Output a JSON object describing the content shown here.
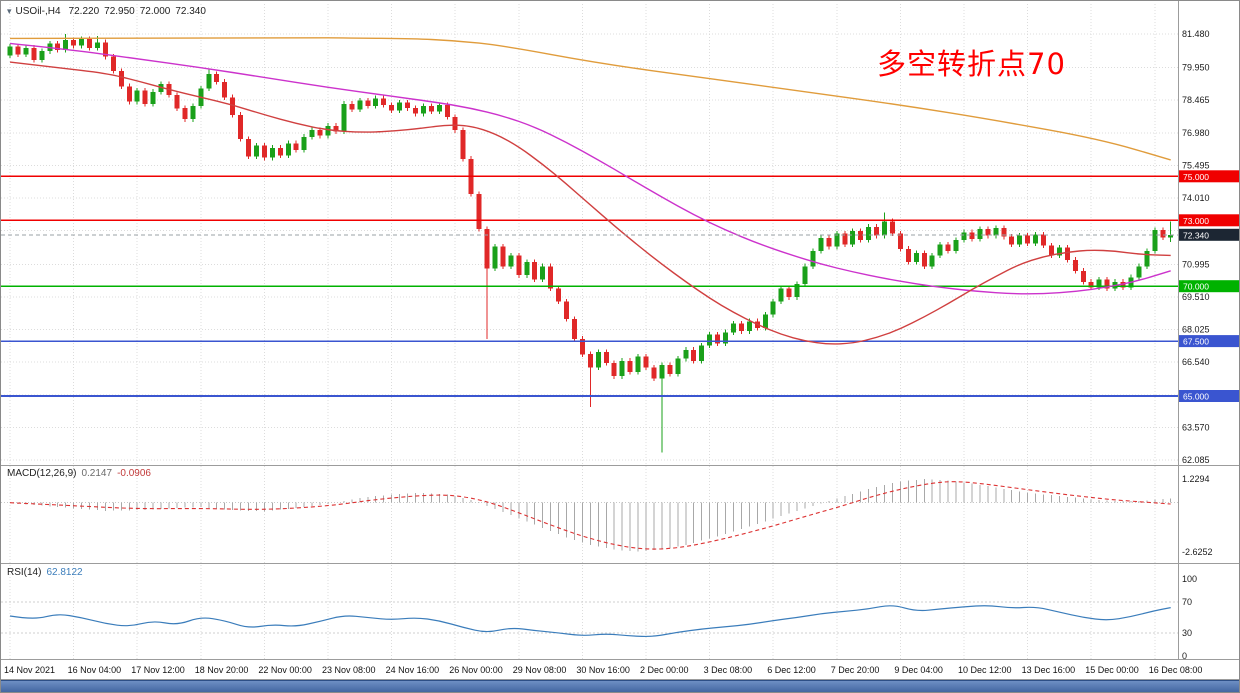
{
  "header": {
    "collapse_icon": "▾",
    "symbol": "USOil-,H4",
    "open": "72.220",
    "high": "72.950",
    "low": "72.000",
    "close": "72.340"
  },
  "annotation": {
    "text": "多空转折点70",
    "color": "#ff0000"
  },
  "colors": {
    "up": "#1aa01a",
    "down": "#e02828",
    "grid": "#dcdcdc",
    "border": "#9c9c9c",
    "current_line": "#9aa0a6",
    "current_badge": "#1c2633",
    "axis_text": "#1a1a1a",
    "macd_hist": "#a8a8a8",
    "macd_signal": "#dd3333",
    "rsi_line": "#3b7dbb"
  },
  "chart_data": [
    {
      "type": "candlestick",
      "title": "USOil-,H4",
      "timeframe": "H4",
      "ohlc_header": {
        "open": 72.22,
        "high": 72.95,
        "low": 72.0,
        "close": 72.34
      },
      "current_price": 72.34,
      "current_price_label": "72.340",
      "first_open": 80.5,
      "closes": [
        80.9,
        80.55,
        80.85,
        80.3,
        80.7,
        81.05,
        80.75,
        81.2,
        80.95,
        81.25,
        80.85,
        81.1,
        80.45,
        79.8,
        79.1,
        78.4,
        78.9,
        78.3,
        78.85,
        79.2,
        78.7,
        78.1,
        77.6,
        78.2,
        79.0,
        79.65,
        79.3,
        78.6,
        77.8,
        76.7,
        75.9,
        76.4,
        75.85,
        76.3,
        75.95,
        76.5,
        76.2,
        76.8,
        77.1,
        76.85,
        77.3,
        77.05,
        78.3,
        78.05,
        78.45,
        78.2,
        78.55,
        78.25,
        78.0,
        78.35,
        78.1,
        77.85,
        78.2,
        77.95,
        78.25,
        77.7,
        77.1,
        75.8,
        74.2,
        72.6,
        70.8,
        71.8,
        70.9,
        71.4,
        70.5,
        71.1,
        70.3,
        70.9,
        69.9,
        69.3,
        68.5,
        67.6,
        66.9,
        66.3,
        67.0,
        66.5,
        65.9,
        66.6,
        66.1,
        66.8,
        66.3,
        65.8,
        66.4,
        66.0,
        66.7,
        67.1,
        66.6,
        67.3,
        67.8,
        67.4,
        67.9,
        68.3,
        67.95,
        68.4,
        68.1,
        68.7,
        69.3,
        69.9,
        69.5,
        70.1,
        70.9,
        71.6,
        72.2,
        71.8,
        72.4,
        71.9,
        72.5,
        72.1,
        72.7,
        72.3,
        72.95,
        72.4,
        71.7,
        71.1,
        71.5,
        70.9,
        71.4,
        71.9,
        71.6,
        72.1,
        72.45,
        72.15,
        72.6,
        72.3,
        72.65,
        72.25,
        71.9,
        72.3,
        71.95,
        72.35,
        71.85,
        71.4,
        71.75,
        71.2,
        70.7,
        70.2,
        69.95,
        70.3,
        69.9,
        70.2,
        69.95,
        70.4,
        70.9,
        71.6,
        72.55,
        72.22,
        72.34
      ],
      "wick_high_overrides": {
        "7": 81.48,
        "11": 81.4,
        "25": 79.9,
        "110": 73.35,
        "146": 72.95
      },
      "wick_low_overrides": {
        "60": 67.6,
        "73": 64.5,
        "82": 62.43,
        "146": 72.0
      },
      "y_axis": {
        "price_top": 81.48,
        "price_bottom": 62.085,
        "gridlines": [
          {
            "price": 81.48,
            "label": "81.480"
          },
          {
            "price": 79.95,
            "label": "79.950"
          },
          {
            "price": 78.465,
            "label": "78.465"
          },
          {
            "price": 76.98,
            "label": "76.980"
          },
          {
            "price": 75.495,
            "label": "75.495"
          },
          {
            "price": 74.01,
            "label": "74.010"
          },
          {
            "price": 72.525,
            "label": ""
          },
          {
            "price": 70.995,
            "label": "70.995"
          },
          {
            "price": 69.51,
            "label": "69.510"
          },
          {
            "price": 68.025,
            "label": "68.025"
          },
          {
            "price": 66.54,
            "label": "66.540"
          },
          {
            "price": 65.055,
            "label": ""
          },
          {
            "price": 63.57,
            "label": "63.570"
          },
          {
            "price": 62.085,
            "label": "62.085"
          }
        ]
      },
      "horizontal_lines": [
        {
          "price": 75.0,
          "label": "75.000",
          "color": "#f00000"
        },
        {
          "price": 73.0,
          "label": "73.000",
          "color": "#f00000"
        },
        {
          "price": 70.0,
          "label": "70.000",
          "color": "#00b200"
        },
        {
          "price": 67.5,
          "label": "67.500",
          "color": "#3a55d0"
        },
        {
          "price": 65.0,
          "label": "65.000",
          "color": "#3a55d0"
        }
      ],
      "moving_averages": [
        {
          "name": "ma-slow-orange",
          "color": "#e09c3c",
          "points": [
            [
              0,
              81.28
            ],
            [
              30,
              81.33
            ],
            [
              50,
              81.28
            ],
            [
              56,
              81.18
            ],
            [
              62,
              80.95
            ],
            [
              74,
              80.15
            ],
            [
              87,
              79.5
            ],
            [
              99,
              78.9
            ],
            [
              112,
              78.25
            ],
            [
              124,
              77.55
            ],
            [
              137,
              76.7
            ],
            [
              146,
              75.75
            ]
          ]
        },
        {
          "name": "ma-medium-magenta",
          "color": "#cc33cc",
          "points": [
            [
              0,
              81.05
            ],
            [
              8,
              80.75
            ],
            [
              16,
              80.35
            ],
            [
              24,
              79.95
            ],
            [
              32,
              79.5
            ],
            [
              40,
              79.05
            ],
            [
              48,
              78.65
            ],
            [
              54,
              78.35
            ],
            [
              58,
              78.1
            ],
            [
              62,
              77.75
            ],
            [
              66,
              77.25
            ],
            [
              70,
              76.55
            ],
            [
              74,
              75.75
            ],
            [
              78,
              74.9
            ],
            [
              82,
              74.05
            ],
            [
              86,
              73.25
            ],
            [
              90,
              72.55
            ],
            [
              94,
              71.95
            ],
            [
              98,
              71.45
            ],
            [
              102,
              71.0
            ],
            [
              106,
              70.65
            ],
            [
              110,
              70.35
            ],
            [
              114,
              70.1
            ],
            [
              118,
              69.9
            ],
            [
              122,
              69.75
            ],
            [
              126,
              69.65
            ],
            [
              130,
              69.65
            ],
            [
              134,
              69.75
            ],
            [
              138,
              69.95
            ],
            [
              142,
              70.25
            ],
            [
              146,
              70.7
            ]
          ]
        },
        {
          "name": "ma-fast-red",
          "color": "#d04040",
          "points": [
            [
              0,
              80.2
            ],
            [
              6,
              79.95
            ],
            [
              12,
              79.7
            ],
            [
              16,
              79.35
            ],
            [
              20,
              78.95
            ],
            [
              24,
              78.6
            ],
            [
              28,
              78.25
            ],
            [
              32,
              77.8
            ],
            [
              36,
              77.4
            ],
            [
              40,
              77.1
            ],
            [
              44,
              77.0
            ],
            [
              48,
              77.05
            ],
            [
              52,
              77.2
            ],
            [
              55,
              77.35
            ],
            [
              58,
              77.3
            ],
            [
              61,
              76.95
            ],
            [
              64,
              76.35
            ],
            [
              67,
              75.55
            ],
            [
              70,
              74.65
            ],
            [
              73,
              73.7
            ],
            [
              76,
              72.75
            ],
            [
              79,
              71.85
            ],
            [
              82,
              71.0
            ],
            [
              85,
              70.2
            ],
            [
              88,
              69.45
            ],
            [
              91,
              68.8
            ],
            [
              94,
              68.25
            ],
            [
              97,
              67.8
            ],
            [
              100,
              67.5
            ],
            [
              103,
              67.35
            ],
            [
              106,
              67.4
            ],
            [
              109,
              67.65
            ],
            [
              112,
              68.05
            ],
            [
              115,
              68.6
            ],
            [
              118,
              69.2
            ],
            [
              121,
              69.85
            ],
            [
              124,
              70.45
            ],
            [
              127,
              71.0
            ],
            [
              130,
              71.35
            ],
            [
              133,
              71.55
            ],
            [
              136,
              71.65
            ],
            [
              139,
              71.6
            ],
            [
              142,
              71.45
            ],
            [
              146,
              71.4
            ]
          ]
        }
      ],
      "x_axis_labels": [
        "14 Nov 2021",
        "16 Nov 04:00",
        "17 Nov 12:00",
        "18 Nov 20:00",
        "22 Nov 00:00",
        "23 Nov 08:00",
        "24 Nov 16:00",
        "26 Nov 00:00",
        "29 Nov 08:00",
        "30 Nov 16:00",
        "2 Dec 00:00",
        "3 Dec 08:00",
        "6 Dec 12:00",
        "7 Dec 20:00",
        "9 Dec 04:00",
        "10 Dec 12:00",
        "13 Dec 16:00",
        "15 Dec 00:00",
        "16 Dec 08:00"
      ],
      "candles_per_tick": 8
    },
    {
      "type": "macd",
      "label": "MACD(12,26,9)",
      "main_value": "0.2147",
      "signal_value": "-0.0906",
      "scale_top": 1.2294,
      "scale_bottom": -2.6252,
      "axis_labels": [
        {
          "value": 1.2294,
          "label": "1.2294"
        },
        {
          "value": -2.6252,
          "label": "-2.6252"
        }
      ],
      "histogram_points": [
        [
          0,
          -0.05
        ],
        [
          4,
          -0.18
        ],
        [
          8,
          -0.32
        ],
        [
          12,
          -0.45
        ],
        [
          16,
          -0.42
        ],
        [
          20,
          -0.32
        ],
        [
          24,
          -0.25
        ],
        [
          28,
          -0.42
        ],
        [
          32,
          -0.48
        ],
        [
          36,
          -0.3
        ],
        [
          40,
          -0.08
        ],
        [
          44,
          0.22
        ],
        [
          48,
          0.42
        ],
        [
          52,
          0.5
        ],
        [
          55,
          0.42
        ],
        [
          58,
          0.12
        ],
        [
          61,
          -0.35
        ],
        [
          64,
          -0.85
        ],
        [
          67,
          -1.35
        ],
        [
          70,
          -1.85
        ],
        [
          73,
          -2.25
        ],
        [
          76,
          -2.5
        ],
        [
          79,
          -2.6
        ],
        [
          82,
          -2.48
        ],
        [
          85,
          -2.25
        ],
        [
          88,
          -1.92
        ],
        [
          91,
          -1.55
        ],
        [
          94,
          -1.15
        ],
        [
          97,
          -0.72
        ],
        [
          100,
          -0.32
        ],
        [
          103,
          0.06
        ],
        [
          106,
          0.45
        ],
        [
          109,
          0.82
        ],
        [
          112,
          1.1
        ],
        [
          115,
          1.22
        ],
        [
          118,
          1.14
        ],
        [
          121,
          0.98
        ],
        [
          124,
          0.78
        ],
        [
          127,
          0.58
        ],
        [
          130,
          0.42
        ],
        [
          133,
          0.28
        ],
        [
          136,
          0.16
        ],
        [
          139,
          0.06
        ],
        [
          142,
          0.06
        ],
        [
          144,
          0.14
        ],
        [
          146,
          0.21
        ]
      ],
      "signal_points": [
        [
          0,
          -0.02
        ],
        [
          8,
          -0.18
        ],
        [
          16,
          -0.35
        ],
        [
          24,
          -0.32
        ],
        [
          32,
          -0.4
        ],
        [
          40,
          -0.2
        ],
        [
          46,
          0.15
        ],
        [
          52,
          0.38
        ],
        [
          56,
          0.38
        ],
        [
          60,
          0.05
        ],
        [
          64,
          -0.55
        ],
        [
          68,
          -1.2
        ],
        [
          72,
          -1.8
        ],
        [
          76,
          -2.25
        ],
        [
          80,
          -2.5
        ],
        [
          84,
          -2.42
        ],
        [
          88,
          -2.1
        ],
        [
          92,
          -1.7
        ],
        [
          96,
          -1.25
        ],
        [
          100,
          -0.75
        ],
        [
          104,
          -0.28
        ],
        [
          108,
          0.25
        ],
        [
          112,
          0.7
        ],
        [
          116,
          1.02
        ],
        [
          119,
          1.12
        ],
        [
          123,
          0.95
        ],
        [
          127,
          0.72
        ],
        [
          131,
          0.5
        ],
        [
          135,
          0.3
        ],
        [
          139,
          0.12
        ],
        [
          143,
          0.0
        ],
        [
          146,
          -0.09
        ]
      ]
    },
    {
      "type": "rsi",
      "label": "RSI(14)",
      "value": "62.8122",
      "levels": [
        70,
        30
      ],
      "axis_labels": [
        {
          "value": 100,
          "label": "100"
        },
        {
          "value": 70,
          "label": "70"
        },
        {
          "value": 30,
          "label": "30"
        },
        {
          "value": 0,
          "label": "0"
        }
      ],
      "points": [
        [
          0,
          52
        ],
        [
          3,
          47
        ],
        [
          6,
          55
        ],
        [
          9,
          50
        ],
        [
          12,
          42
        ],
        [
          15,
          38
        ],
        [
          18,
          46
        ],
        [
          21,
          40
        ],
        [
          24,
          51
        ],
        [
          27,
          46
        ],
        [
          30,
          36
        ],
        [
          33,
          41
        ],
        [
          36,
          38
        ],
        [
          39,
          45
        ],
        [
          42,
          53
        ],
        [
          45,
          50
        ],
        [
          48,
          47
        ],
        [
          51,
          50
        ],
        [
          54,
          46
        ],
        [
          57,
          37
        ],
        [
          60,
          30
        ],
        [
          63,
          37
        ],
        [
          66,
          33
        ],
        [
          69,
          30
        ],
        [
          72,
          26
        ],
        [
          75,
          29
        ],
        [
          78,
          26
        ],
        [
          81,
          25
        ],
        [
          84,
          31
        ],
        [
          87,
          35
        ],
        [
          90,
          38
        ],
        [
          93,
          41
        ],
        [
          96,
          46
        ],
        [
          99,
          50
        ],
        [
          102,
          55
        ],
        [
          105,
          58
        ],
        [
          108,
          61
        ],
        [
          111,
          67
        ],
        [
          114,
          58
        ],
        [
          117,
          61
        ],
        [
          120,
          64
        ],
        [
          123,
          66
        ],
        [
          126,
          62
        ],
        [
          129,
          64
        ],
        [
          132,
          57
        ],
        [
          135,
          50
        ],
        [
          138,
          46
        ],
        [
          141,
          51
        ],
        [
          144,
          59
        ],
        [
          146,
          62.8
        ]
      ]
    }
  ]
}
